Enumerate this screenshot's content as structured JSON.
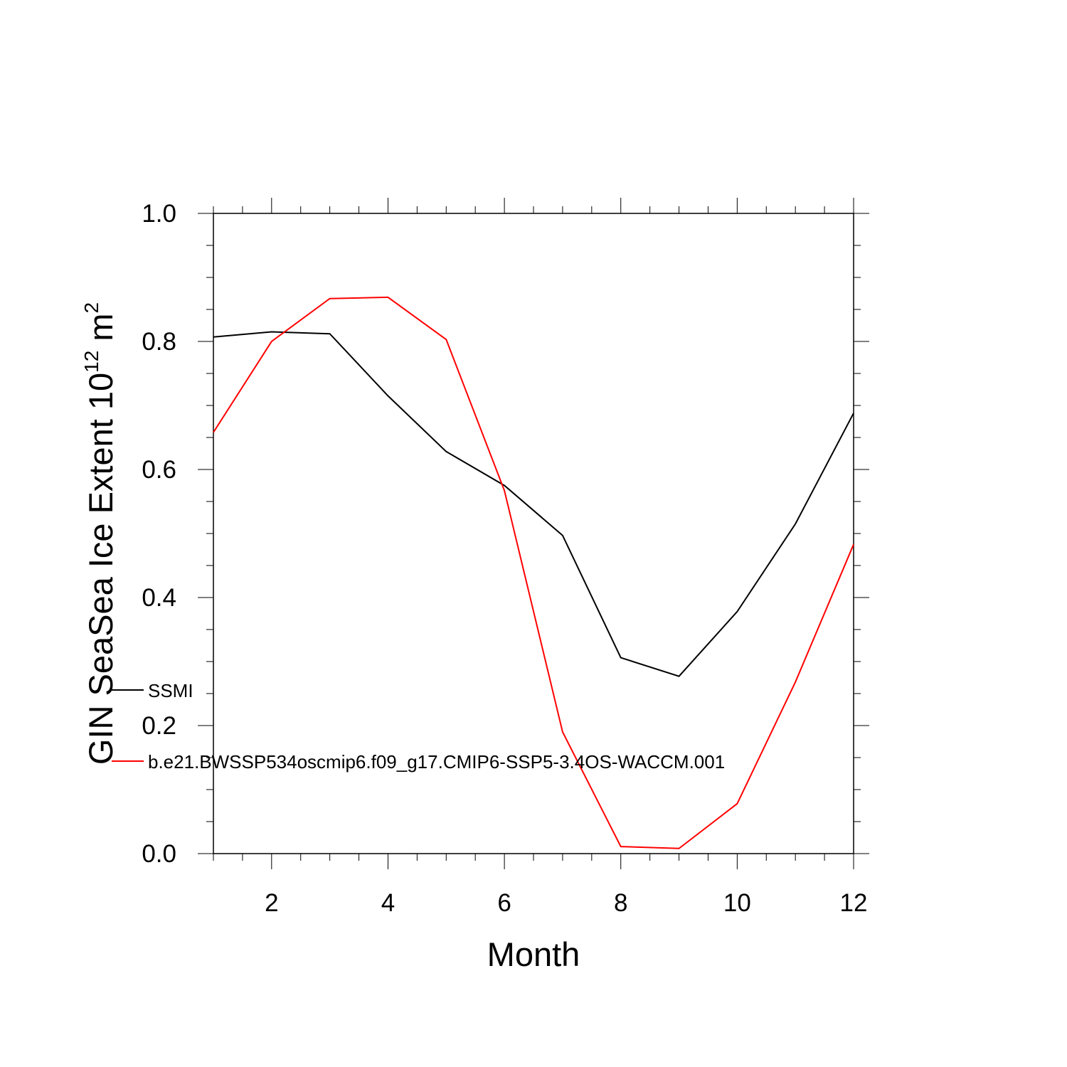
{
  "chart_data": {
    "type": "line",
    "xlabel": "Month",
    "ylabel": {
      "prefix": "GIN SeaSea Ice Extent 10",
      "exponent": "12",
      "unit": " m",
      "unit_exponent": "2"
    },
    "xlim": [
      1,
      12
    ],
    "ylim": [
      0.0,
      1.0
    ],
    "x": [
      1,
      2,
      3,
      4,
      5,
      6,
      7,
      8,
      9,
      10,
      11,
      12
    ],
    "x_ticks": [
      2,
      4,
      6,
      8,
      10,
      12
    ],
    "x_tick_labels": [
      "2",
      "4",
      "6",
      "8",
      "10",
      "12"
    ],
    "y_ticks": [
      0.0,
      0.2,
      0.4,
      0.6,
      0.8,
      1.0
    ],
    "y_tick_labels": [
      "0.0",
      "0.2",
      "0.4",
      "0.6",
      "0.8",
      "1.0"
    ],
    "grid": false,
    "legend_position": "left-inside",
    "series": [
      {
        "name": "SSMI",
        "color": "#000000",
        "values": [
          0.807,
          0.815,
          0.812,
          0.715,
          0.628,
          0.575,
          0.497,
          0.306,
          0.277,
          0.378,
          0.515,
          0.688
        ]
      },
      {
        "name": "b.e21.BWSSP534oscmip6.f09_g17.CMIP6-SSP5-3.4OS-WACCM.001",
        "color": "#ff0000",
        "values": [
          0.658,
          0.8,
          0.867,
          0.869,
          0.803,
          0.567,
          0.19,
          0.011,
          0.008,
          0.078,
          0.268,
          0.483
        ]
      }
    ]
  }
}
